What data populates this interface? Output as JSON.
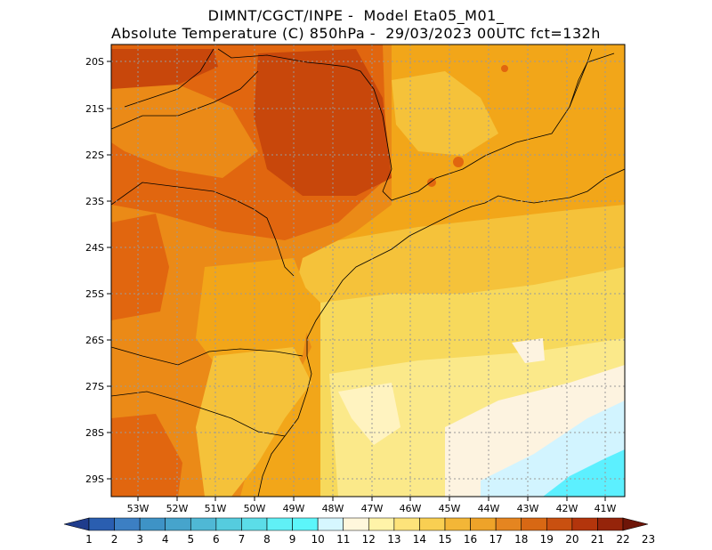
{
  "title": {
    "line1": "DIMNT/CGCT/INPE -  Model Eta05_M01_",
    "line2": "Absolute Temperature (C) 850hPa -  29/03/2023 00UTC fct=132h"
  },
  "map": {
    "lat_labels": [
      "20S",
      "21S",
      "22S",
      "23S",
      "24S",
      "25S",
      "26S",
      "27S",
      "28S",
      "29S"
    ],
    "lon_labels": [
      "53W",
      "52W",
      "51W",
      "50W",
      "49W",
      "48W",
      "47W",
      "46W",
      "45W",
      "44W",
      "43W",
      "42W",
      "41W"
    ],
    "grid": "dotted",
    "field_colors": {
      "warmest": "#c8470b",
      "warm": "#e1660f",
      "mid": "#eb8a17",
      "mild": "#f2a619",
      "cool": "#f5c23a",
      "cooler": "#f7d95c",
      "pale": "#fbe98a",
      "cream": "#fff6c8",
      "lightest": "#fdf3e0",
      "cyan_light": "#d2f4ff",
      "cyan": "#5cf0ff"
    }
  },
  "colorbar": {
    "labels": [
      "1",
      "2",
      "3",
      "4",
      "5",
      "6",
      "7",
      "8",
      "9",
      "10",
      "11",
      "12",
      "13",
      "14",
      "15",
      "16",
      "17",
      "18",
      "19",
      "20",
      "21",
      "22",
      "23"
    ],
    "colors": [
      "#1f3c8c",
      "#2a5eb0",
      "#3c7fc3",
      "#3e93c6",
      "#46a4cc",
      "#4fb8d5",
      "#55ccde",
      "#5bdde8",
      "#60f0f6",
      "#5cf6fa",
      "#d6f7ff",
      "#fff7dc",
      "#fff3a8",
      "#fde37a",
      "#f9cf52",
      "#f3b637",
      "#eea329",
      "#e58520",
      "#d86814",
      "#c95010",
      "#b3350c",
      "#95240a",
      "#6e1508"
    ]
  }
}
